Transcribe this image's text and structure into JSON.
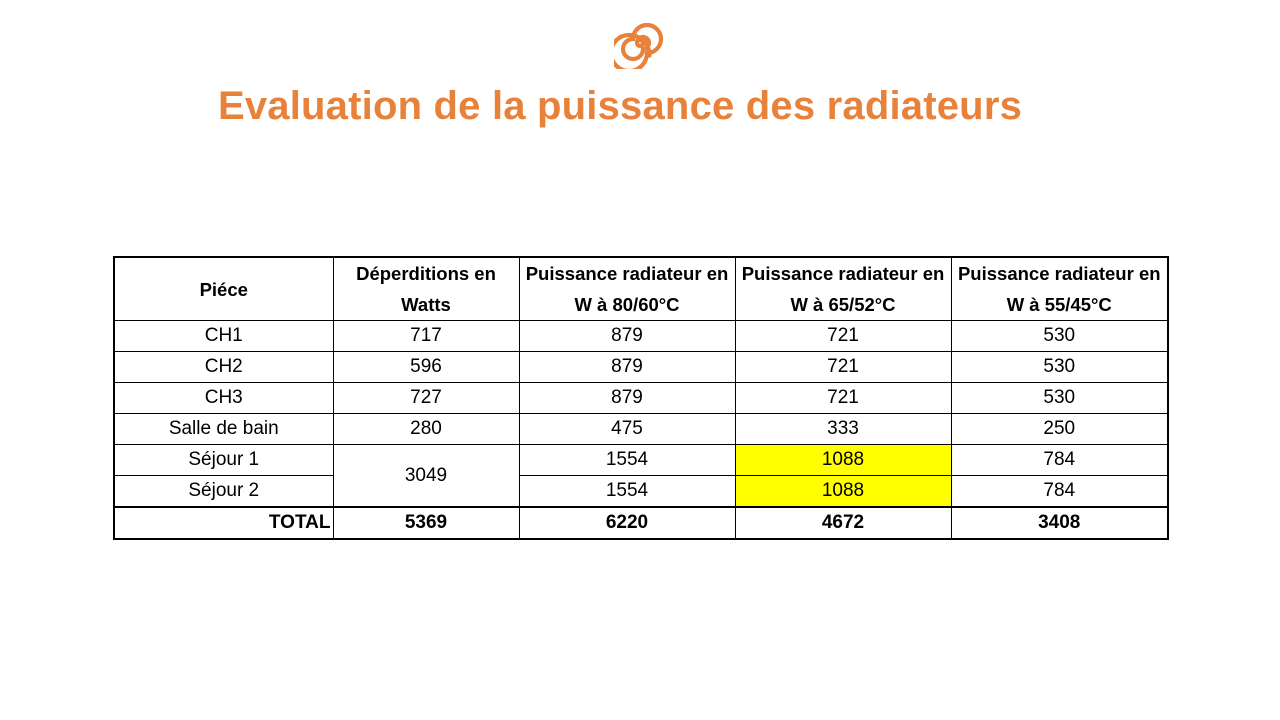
{
  "logo": {
    "icon": "spiral-logo-icon",
    "color": "#E8823A"
  },
  "title": "Evaluation de la puissance des radiateurs",
  "table": {
    "headers": {
      "piece": "Piéce",
      "deperditions": "Déperditions en Watts",
      "p80": "Puissance radiateur en W à 80/60°C",
      "p65": "Puissance radiateur en W à 65/52°C",
      "p55": "Puissance radiateur en W à 55/45°C"
    },
    "rows": [
      {
        "piece": "CH1",
        "deperditions": "717",
        "p80": "879",
        "p65": "721",
        "p55": "530"
      },
      {
        "piece": "CH2",
        "deperditions": "596",
        "p80": "879",
        "p65": "721",
        "p55": "530"
      },
      {
        "piece": "CH3",
        "deperditions": "727",
        "p80": "879",
        "p65": "721",
        "p55": "530"
      },
      {
        "piece": "Salle de bain",
        "deperditions": "280",
        "p80": "475",
        "p65": "333",
        "p55": "250"
      },
      {
        "piece": "Séjour 1",
        "deperditions": "3049",
        "p80": "1554",
        "p65": "1088",
        "p55": "784"
      },
      {
        "piece": "Séjour 2",
        "p80": "1554",
        "p65": "1088",
        "p55": "784"
      }
    ],
    "total": {
      "label": "TOTAL",
      "deperditions": "5369",
      "p80": "6220",
      "p65": "4672",
      "p55": "3408"
    },
    "highlight_color": "#FFFF00"
  }
}
